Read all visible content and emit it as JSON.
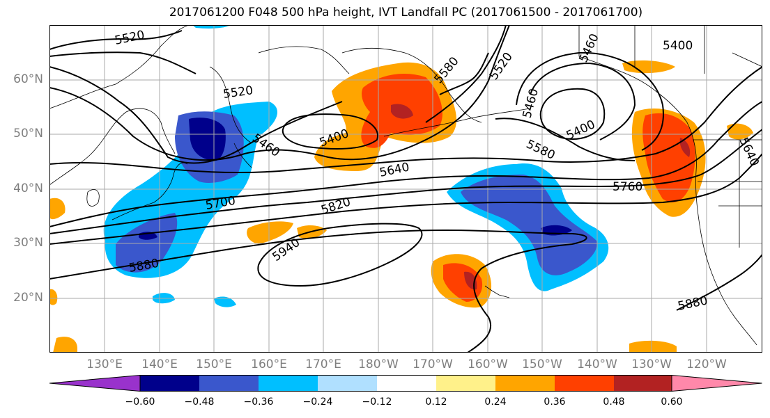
{
  "title": "2017061200 F048 500 hPa height, IVT Landfall PC (2017061500 - 2017061700)",
  "lat_labels": [
    "60°N",
    "50°N",
    "40°N",
    "30°N",
    "20°N"
  ],
  "lon_labels": [
    "130°E",
    "140°E",
    "150°E",
    "160°E",
    "170°E",
    "180°W",
    "170°W",
    "160°W",
    "150°W",
    "140°W",
    "130°W",
    "120°W"
  ],
  "contour_labels": {
    "c5520a": "5520",
    "c5520b": "5520",
    "c5520c": "5520",
    "c5460a": "5460",
    "c5460b": "5460",
    "c5460c": "5460",
    "c5400a": "5400",
    "c5400b": "5400",
    "c5400c": "5400",
    "c5580a": "5580",
    "c5580b": "5580",
    "c5640a": "5640",
    "c5640b": "5640",
    "c5700": "5700",
    "c5760": "5760",
    "c5820": "5820",
    "c5940": "5940",
    "c5880a": "5880",
    "c5880b": "5880"
  },
  "colorbar": {
    "colors": [
      "#9932cc",
      "#00008b",
      "#3a57cc",
      "#00bfff",
      "#b0e0ff",
      "#ffffff",
      "#fff18a",
      "#ffa500",
      "#ff4000",
      "#b22222",
      "#ff88aa"
    ],
    "ticks": [
      "−0.60",
      "−0.48",
      "−0.36",
      "−0.24",
      "−0.12",
      "0.12",
      "0.24",
      "0.36",
      "0.48",
      "0.60"
    ]
  }
}
